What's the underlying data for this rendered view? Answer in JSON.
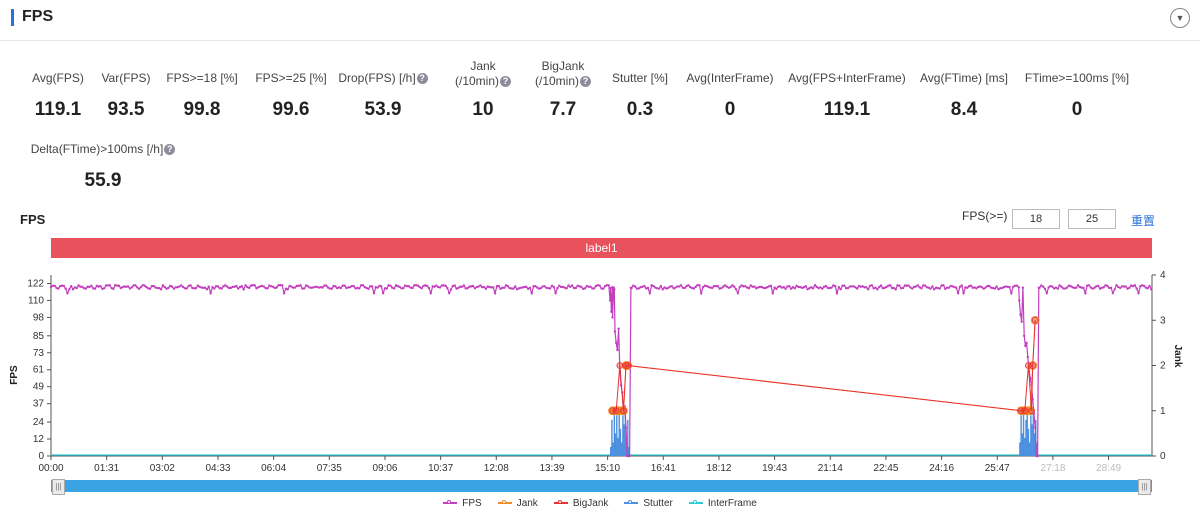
{
  "header": {
    "title": "FPS",
    "collapse_icon": "chevron-down-icon"
  },
  "stats": [
    {
      "label": "Avg(FPS)",
      "value": "119.1",
      "help": false
    },
    {
      "label": "Var(FPS)",
      "value": "93.5",
      "help": false
    },
    {
      "label": "FPS>=18 [%]",
      "value": "99.8",
      "help": false
    },
    {
      "label": "FPS>=25 [%]",
      "value": "99.6",
      "help": false
    },
    {
      "label": "Drop(FPS) [/h]",
      "value": "53.9",
      "help": true
    },
    {
      "label": "Jank\n(/10min)",
      "value": "10",
      "help": true
    },
    {
      "label": "BigJank\n(/10min)",
      "value": "7.7",
      "help": true
    },
    {
      "label": "Stutter [%]",
      "value": "0.3",
      "help": false
    },
    {
      "label": "Avg(InterFrame)",
      "value": "0",
      "help": false
    },
    {
      "label": "Avg(FPS+InterFrame)",
      "value": "119.1",
      "help": false
    },
    {
      "label": "Avg(FTime) [ms]",
      "value": "8.4",
      "help": false
    },
    {
      "label": "FTime>=100ms [%]",
      "value": "0",
      "help": false
    },
    {
      "label": "Delta(FTime)>100ms [/h]",
      "value": "55.9",
      "help": true
    }
  ],
  "chart_header": {
    "title": "FPS",
    "threshold_label": "FPS(>=)",
    "threshold_low": "18",
    "threshold_high": "25",
    "reset_label": "重置"
  },
  "label_band": "label1",
  "colors": {
    "fps": "#c23fbe",
    "jank": "#f28c28",
    "bigjank": "#e8312f",
    "stutter": "#4a8fe0",
    "interframe": "#30c9d6",
    "label_band": "#e8525d",
    "slider": "#3aa3e3"
  },
  "chart_data": {
    "type": "line",
    "ylabel": "FPS",
    "y2label": "Jank",
    "x_tick_labels": [
      "00:00",
      "01:31",
      "03:02",
      "04:33",
      "06:04",
      "07:35",
      "09:06",
      "10:37",
      "12:08",
      "13:39",
      "15:10",
      "16:41",
      "18:12",
      "19:43",
      "21:14",
      "22:45",
      "24:16",
      "25:47",
      "27:18",
      "28:49"
    ],
    "y_ticks": [
      0,
      12,
      24,
      37,
      49,
      61,
      73,
      85,
      98,
      110,
      122
    ],
    "y2_ticks": [
      0,
      1,
      2,
      3,
      4
    ],
    "ylim": [
      0,
      122
    ],
    "y2lim": [
      0,
      4
    ],
    "x_range_sec": [
      0,
      1800
    ],
    "series": [
      {
        "name": "FPS",
        "segments": [
          {
            "type": "steady",
            "x_start": 0,
            "x_end": 923,
            "value": 119.5
          },
          {
            "type": "points",
            "x": [
              914,
              916,
              918,
              920,
              922,
              924,
              926,
              928,
              930,
              932,
              934,
              936,
              938,
              940,
              942,
              944,
              946,
              948
            ],
            "values": [
              110,
              102,
              98,
              119,
              88,
              80,
              75,
              90,
              60,
              50,
              45,
              30,
              35,
              20,
              0,
              0,
              0,
              119
            ]
          },
          {
            "type": "steady",
            "x_start": 949,
            "x_end": 1583,
            "value": 119.5
          },
          {
            "type": "points",
            "x": [
              1583,
              1585,
              1587,
              1589,
              1591,
              1593,
              1595,
              1597,
              1599,
              1601,
              1603,
              1605,
              1607,
              1609,
              1611,
              1613,
              1615
            ],
            "values": [
              110,
              100,
              95,
              119,
              85,
              78,
              80,
              70,
              60,
              55,
              50,
              40,
              30,
              20,
              0,
              0,
              119
            ]
          },
          {
            "type": "steady",
            "x_start": 1616,
            "x_end": 1800,
            "value": 119.5
          }
        ]
      },
      {
        "name": "Jank",
        "points": [
          [
            918,
            1
          ],
          [
            921,
            1
          ],
          [
            924,
            1
          ],
          [
            927,
            1
          ],
          [
            930,
            1
          ],
          [
            933,
            1
          ],
          [
            936,
            1
          ],
          [
            940,
            2
          ],
          [
            943,
            2
          ],
          [
            1586,
            1
          ],
          [
            1589,
            1
          ],
          [
            1592,
            1
          ],
          [
            1595,
            1
          ],
          [
            1598,
            1
          ],
          [
            1601,
            1
          ],
          [
            1605,
            2
          ],
          [
            1609,
            3
          ]
        ]
      },
      {
        "name": "BigJank",
        "points": [
          [
            918,
            1
          ],
          [
            924,
            1
          ],
          [
            930,
            2
          ],
          [
            936,
            1
          ],
          [
            940,
            2
          ],
          [
            943,
            2
          ],
          [
            1586,
            1
          ],
          [
            1592,
            1
          ],
          [
            1598,
            2
          ],
          [
            1603,
            1
          ],
          [
            1605,
            2
          ],
          [
            1609,
            3
          ]
        ]
      },
      {
        "name": "Stutter",
        "points": [
          [
            915,
            0.2
          ],
          [
            917,
            0.8
          ],
          [
            919,
            0.3
          ],
          [
            921,
            1.0
          ],
          [
            923,
            0.5
          ],
          [
            925,
            0.9
          ],
          [
            927,
            0.4
          ],
          [
            929,
            1.0
          ],
          [
            931,
            0.6
          ],
          [
            933,
            0.3
          ],
          [
            935,
            0.9
          ],
          [
            937,
            0.7
          ],
          [
            939,
            1.0
          ],
          [
            941,
            0.4
          ],
          [
            943,
            0.8
          ],
          [
            945,
            0.2
          ],
          [
            1584,
            0.3
          ],
          [
            1586,
            0.9
          ],
          [
            1588,
            0.5
          ],
          [
            1590,
            1.0
          ],
          [
            1592,
            0.4
          ],
          [
            1594,
            0.8
          ],
          [
            1596,
            1.0
          ],
          [
            1598,
            0.6
          ],
          [
            1600,
            0.3
          ],
          [
            1602,
            0.9
          ],
          [
            1604,
            0.7
          ],
          [
            1606,
            1.0
          ],
          [
            1608,
            0.5
          ],
          [
            1610,
            0.8
          ],
          [
            1612,
            0.3
          ]
        ]
      },
      {
        "name": "InterFrame",
        "points": [
          [
            0,
            0
          ],
          [
            1800,
            0
          ]
        ]
      }
    ],
    "legend": [
      "FPS",
      "Jank",
      "BigJank",
      "Stutter",
      "InterFrame"
    ],
    "legend_position": "bottom-center",
    "grid": false
  }
}
